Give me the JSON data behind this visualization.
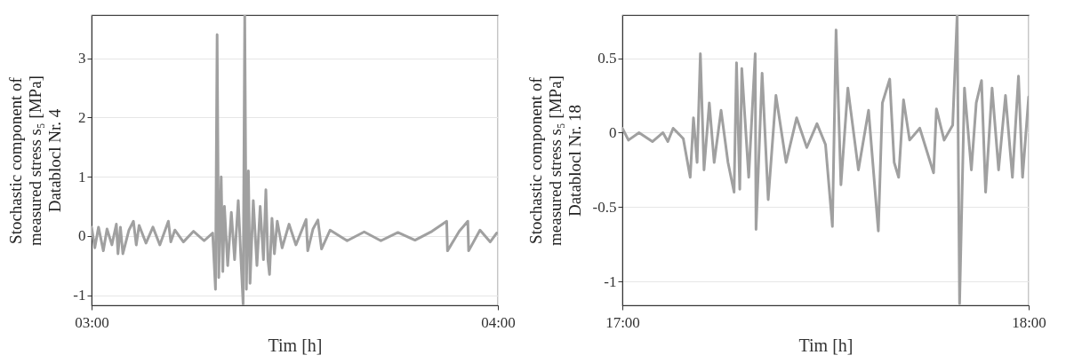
{
  "chart_data": [
    {
      "type": "line",
      "xlabel": "Tim [h]",
      "ylabel": "Stochastic component of\nmeasured stress s₅ [MPa]\nDatablocl Nr. 4",
      "xlim": [
        3,
        4
      ],
      "xticks": [
        {
          "value": 3,
          "label": "03:00"
        },
        {
          "value": 4,
          "label": "04:00"
        }
      ],
      "ylim": [
        -1.17,
        3.73
      ],
      "yticks": [
        -1,
        0,
        1,
        2,
        3
      ],
      "grid": true,
      "legend": false,
      "series": [
        {
          "color": "#a0a0a0",
          "x": [
            3.0,
            3.008,
            3.017,
            3.029,
            3.038,
            3.05,
            3.061,
            3.065,
            3.071,
            3.077,
            3.092,
            3.103,
            3.11,
            3.117,
            3.134,
            3.151,
            3.168,
            3.189,
            3.195,
            3.205,
            3.226,
            3.251,
            3.277,
            3.298,
            3.305,
            3.309,
            3.313,
            3.319,
            3.323,
            3.327,
            3.335,
            3.344,
            3.352,
            3.361,
            3.367,
            3.373,
            3.377,
            3.381,
            3.386,
            3.39,
            3.398,
            3.407,
            3.415,
            3.423,
            3.429,
            3.434,
            3.438,
            3.444,
            3.45,
            3.457,
            3.469,
            3.486,
            3.503,
            3.528,
            3.532,
            3.545,
            3.557,
            3.566,
            3.587,
            3.629,
            3.671,
            3.712,
            3.754,
            3.796,
            3.838,
            3.874,
            3.876,
            3.905,
            3.926,
            3.928,
            3.956,
            3.981,
            3.997
          ],
          "values": [
            0.15,
            -0.2,
            0.15,
            -0.25,
            0.12,
            -0.15,
            0.2,
            -0.3,
            0.15,
            -0.3,
            0.1,
            0.25,
            -0.15,
            0.18,
            -0.12,
            0.15,
            -0.15,
            0.25,
            -0.1,
            0.1,
            -0.1,
            0.08,
            -0.08,
            0.05,
            -0.9,
            3.4,
            -0.7,
            1.0,
            -0.6,
            0.5,
            -0.5,
            0.4,
            -0.4,
            0.6,
            -0.3,
            -1.15,
            3.73,
            -0.9,
            1.1,
            -0.8,
            0.6,
            -0.5,
            0.5,
            -0.4,
            0.78,
            -0.4,
            -0.65,
            0.3,
            -0.3,
            0.25,
            -0.2,
            0.2,
            -0.15,
            0.28,
            -0.25,
            0.12,
            0.27,
            -0.22,
            0.1,
            -0.08,
            0.07,
            -0.08,
            0.06,
            -0.07,
            0.08,
            0.25,
            -0.25,
            0.08,
            0.25,
            -0.25,
            0.1,
            -0.1,
            0.05
          ]
        }
      ]
    },
    {
      "type": "line",
      "xlabel": "Tim [h]",
      "ylabel": "Stochastic component of\nmeasured stress s₅ [MPa]\nDatablocl Nr. 18",
      "xlim": [
        17,
        18
      ],
      "xticks": [
        {
          "value": 17,
          "label": "17:00"
        },
        {
          "value": 18,
          "label": "18:00"
        }
      ],
      "ylim": [
        -1.16,
        0.79
      ],
      "yticks": [
        -1,
        -0.5,
        0,
        0.5
      ],
      "grid": true,
      "legend": false,
      "series": [
        {
          "color": "#a0a0a0",
          "x": [
            17.0,
            17.015,
            17.041,
            17.074,
            17.1,
            17.112,
            17.125,
            17.15,
            17.167,
            17.175,
            17.184,
            17.192,
            17.201,
            17.214,
            17.226,
            17.243,
            17.26,
            17.275,
            17.281,
            17.289,
            17.294,
            17.311,
            17.327,
            17.329,
            17.344,
            17.359,
            17.378,
            17.403,
            17.429,
            17.454,
            17.479,
            17.5,
            17.517,
            17.526,
            17.538,
            17.555,
            17.581,
            17.606,
            17.63,
            17.64,
            17.658,
            17.669,
            17.68,
            17.692,
            17.707,
            17.732,
            17.766,
            17.773,
            17.792,
            17.813,
            17.824,
            17.83,
            17.842,
            17.859,
            17.871,
            17.884,
            17.894,
            17.91,
            17.926,
            17.943,
            17.96,
            17.975,
            17.985,
            18.0
          ],
          "values": [
            0.03,
            -0.05,
            0.0,
            -0.06,
            0.0,
            -0.06,
            0.03,
            -0.04,
            -0.3,
            0.1,
            -0.2,
            0.53,
            -0.25,
            0.2,
            -0.2,
            0.15,
            -0.2,
            -0.4,
            0.47,
            -0.38,
            0.43,
            -0.3,
            0.53,
            -0.65,
            0.4,
            -0.45,
            0.25,
            -0.2,
            0.1,
            -0.1,
            0.06,
            -0.08,
            -0.63,
            0.69,
            -0.35,
            0.3,
            -0.25,
            0.15,
            -0.66,
            0.2,
            0.36,
            -0.2,
            -0.3,
            0.22,
            -0.05,
            0.03,
            -0.27,
            0.16,
            -0.05,
            0.05,
            0.79,
            -1.15,
            0.3,
            -0.25,
            0.2,
            0.35,
            -0.4,
            0.3,
            -0.25,
            0.25,
            -0.3,
            0.38,
            -0.3,
            0.24
          ]
        }
      ]
    }
  ]
}
